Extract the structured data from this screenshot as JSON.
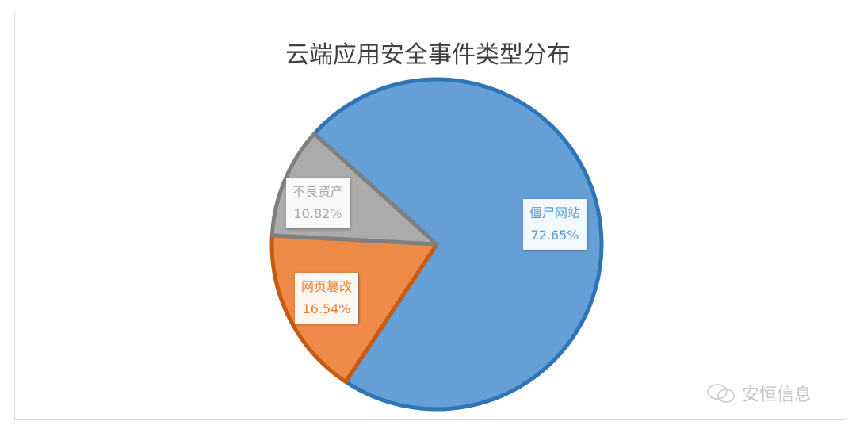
{
  "chart_data": {
    "type": "pie",
    "title": "云端应用安全事件类型分布",
    "start_angle_deg": 312,
    "direction": "clockwise",
    "slices": [
      {
        "label": "僵尸网站",
        "value": 72.65,
        "value_label": "72.65%",
        "color": "#659fd6",
        "border": "#2e75b6",
        "text_color": "#5b9bd5"
      },
      {
        "label": "网页篡改",
        "value": 16.54,
        "value_label": "16.54%",
        "color": "#ed8a47",
        "border": "#c55a11",
        "text_color": "#ed7d31"
      },
      {
        "label": "不良资产",
        "value": 10.82,
        "value_label": "10.82%",
        "color": "#ababab",
        "border": "#7f7f7f",
        "text_color": "#a5a5a5"
      }
    ]
  },
  "watermark": {
    "text": "安恒信息",
    "icon": "wechat-icon"
  }
}
